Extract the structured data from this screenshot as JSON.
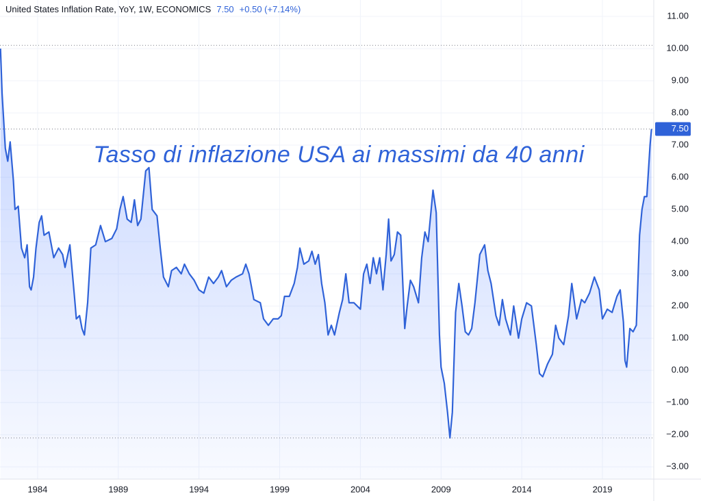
{
  "chart_data": {
    "type": "line",
    "title": "United States Inflation Rate, YoY, 1W, ECONOMICS",
    "legend_value": "7.50",
    "legend_change": "+0.50 (+7.14%)",
    "annotation": "Tasso di inflazione USA ai massimi da 40 anni",
    "xlim": [
      1981.67,
      2022.18
    ],
    "xticks": [
      1984,
      1989,
      1994,
      1999,
      2004,
      2009,
      2014,
      2019
    ],
    "ylim": [
      -3.38,
      11.51
    ],
    "yticks": [
      {
        "value": 11,
        "label": "11.00"
      },
      {
        "value": 10,
        "label": "10.00"
      },
      {
        "value": 9,
        "label": "9.00"
      },
      {
        "value": 8,
        "label": "8.00"
      },
      {
        "value": 7,
        "label": "7.00"
      },
      {
        "value": 6,
        "label": "6.00"
      },
      {
        "value": 5,
        "label": "5.00"
      },
      {
        "value": 4,
        "label": "4.00"
      },
      {
        "value": 3,
        "label": "3.00"
      },
      {
        "value": 2,
        "label": "2.00"
      },
      {
        "value": 1,
        "label": "1.00"
      },
      {
        "value": 0,
        "label": "0.00"
      },
      {
        "value": -1,
        "label": "−1.00"
      },
      {
        "value": -2,
        "label": "−2.00"
      },
      {
        "value": -3,
        "label": "−3.00"
      }
    ],
    "grid": true,
    "price_lines": [
      10.1,
      -2.1
    ],
    "last_value_label": "7.50",
    "x": [
      1981.7,
      1981.8,
      1982.0,
      1982.15,
      1982.3,
      1982.5,
      1982.6,
      1982.8,
      1983.0,
      1983.2,
      1983.35,
      1983.5,
      1983.6,
      1983.75,
      1983.9,
      1984.1,
      1984.25,
      1984.4,
      1984.7,
      1985.0,
      1985.3,
      1985.55,
      1985.7,
      1986.0,
      1986.3,
      1986.4,
      1986.6,
      1986.75,
      1986.9,
      1987.1,
      1987.3,
      1987.6,
      1987.9,
      1988.2,
      1988.6,
      1988.9,
      1989.1,
      1989.3,
      1989.55,
      1989.8,
      1990.0,
      1990.2,
      1990.4,
      1990.7,
      1990.9,
      1991.1,
      1991.4,
      1991.6,
      1991.8,
      1992.1,
      1992.3,
      1992.6,
      1992.9,
      1993.1,
      1993.4,
      1993.7,
      1994.0,
      1994.3,
      1994.6,
      1994.9,
      1995.2,
      1995.4,
      1995.7,
      1996.0,
      1996.3,
      1996.7,
      1996.9,
      1997.1,
      1997.4,
      1997.8,
      1998.0,
      1998.3,
      1998.6,
      1998.9,
      1999.1,
      1999.3,
      1999.6,
      1999.9,
      2000.1,
      2000.25,
      2000.5,
      2000.8,
      2001.0,
      2001.2,
      2001.4,
      2001.6,
      2001.8,
      2002.0,
      2002.2,
      2002.4,
      2002.7,
      2002.9,
      2003.1,
      2003.3,
      2003.6,
      2003.8,
      2004.0,
      2004.2,
      2004.4,
      2004.6,
      2004.8,
      2005.0,
      2005.2,
      2005.4,
      2005.6,
      2005.75,
      2005.9,
      2006.1,
      2006.3,
      2006.5,
      2006.75,
      2006.9,
      2007.1,
      2007.3,
      2007.6,
      2007.8,
      2008.0,
      2008.2,
      2008.5,
      2008.7,
      2008.9,
      2009.0,
      2009.2,
      2009.4,
      2009.55,
      2009.7,
      2009.9,
      2010.1,
      2010.3,
      2010.5,
      2010.7,
      2010.9,
      2011.1,
      2011.4,
      2011.7,
      2011.9,
      2012.1,
      2012.4,
      2012.6,
      2012.8,
      2013.0,
      2013.3,
      2013.5,
      2013.8,
      2014.0,
      2014.3,
      2014.6,
      2014.9,
      2015.1,
      2015.3,
      2015.6,
      2015.9,
      2016.1,
      2016.3,
      2016.6,
      2016.9,
      2017.1,
      2017.4,
      2017.7,
      2017.9,
      2018.2,
      2018.5,
      2018.8,
      2019.0,
      2019.3,
      2019.6,
      2019.9,
      2020.1,
      2020.3,
      2020.4,
      2020.5,
      2020.7,
      2020.9,
      2021.1,
      2021.3,
      2021.45,
      2021.6,
      2021.75,
      2021.85,
      2021.95,
      2022.04
    ],
    "series": [
      {
        "name": "United States Inflation Rate",
        "color": "#2f62d8",
        "values": [
          10.0,
          8.6,
          6.9,
          6.5,
          7.1,
          5.9,
          5.0,
          5.1,
          3.8,
          3.5,
          3.9,
          2.6,
          2.5,
          2.9,
          3.8,
          4.6,
          4.8,
          4.2,
          4.3,
          3.5,
          3.8,
          3.6,
          3.2,
          3.9,
          2.2,
          1.6,
          1.7,
          1.3,
          1.1,
          2.1,
          3.8,
          3.9,
          4.5,
          4.0,
          4.1,
          4.4,
          5.0,
          5.4,
          4.7,
          4.6,
          5.3,
          4.5,
          4.7,
          6.2,
          6.3,
          5.0,
          4.8,
          3.8,
          2.9,
          2.6,
          3.1,
          3.2,
          3.0,
          3.3,
          3.0,
          2.8,
          2.5,
          2.4,
          2.9,
          2.7,
          2.9,
          3.1,
          2.6,
          2.8,
          2.9,
          3.0,
          3.3,
          3.0,
          2.2,
          2.1,
          1.6,
          1.4,
          1.6,
          1.6,
          1.7,
          2.3,
          2.3,
          2.7,
          3.2,
          3.8,
          3.3,
          3.4,
          3.7,
          3.3,
          3.6,
          2.7,
          2.1,
          1.1,
          1.4,
          1.1,
          1.8,
          2.2,
          3.0,
          2.1,
          2.1,
          2.0,
          1.9,
          3.0,
          3.3,
          2.7,
          3.5,
          3.0,
          3.5,
          2.5,
          3.6,
          4.7,
          3.4,
          3.6,
          4.3,
          4.2,
          1.3,
          2.0,
          2.8,
          2.6,
          2.1,
          3.5,
          4.3,
          4.0,
          5.6,
          4.9,
          1.1,
          0.1,
          -0.4,
          -1.3,
          -2.1,
          -1.3,
          1.8,
          2.7,
          2.0,
          1.2,
          1.1,
          1.3,
          2.1,
          3.6,
          3.9,
          3.1,
          2.7,
          1.7,
          1.4,
          2.2,
          1.6,
          1.1,
          2.0,
          1.0,
          1.6,
          2.1,
          2.0,
          0.8,
          -0.1,
          -0.2,
          0.2,
          0.5,
          1.4,
          1.0,
          0.8,
          1.7,
          2.7,
          1.6,
          2.2,
          2.1,
          2.4,
          2.9,
          2.5,
          1.6,
          1.9,
          1.8,
          2.3,
          2.5,
          1.5,
          0.3,
          0.1,
          1.3,
          1.2,
          1.4,
          4.2,
          5.0,
          5.4,
          5.4,
          6.2,
          7.0,
          7.5
        ]
      }
    ]
  }
}
